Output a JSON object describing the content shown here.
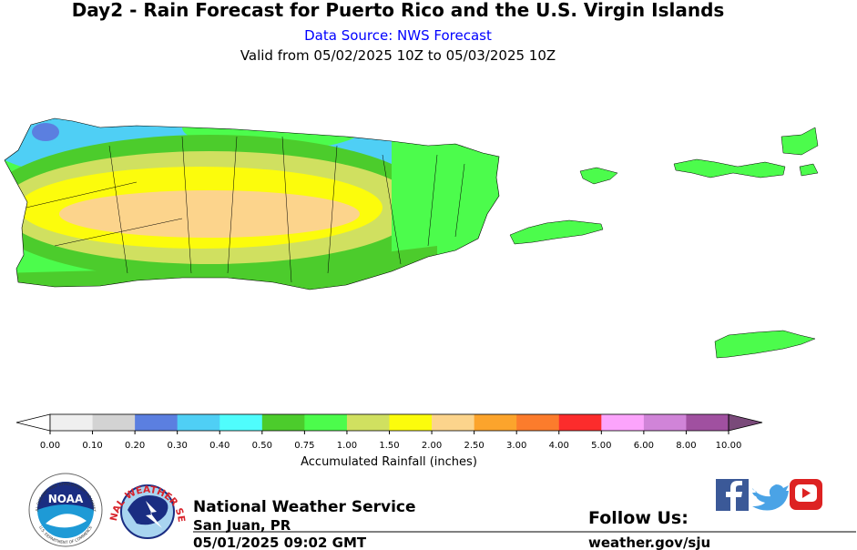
{
  "header": {
    "title": "Day2 - Rain Forecast for Puerto Rico and the U.S. Virgin Islands",
    "source": "Data Source: NWS Forecast",
    "valid": "Valid from 05/02/2025 10Z to 05/03/2025 10Z"
  },
  "legend": {
    "label": "Accumulated Rainfall (inches)",
    "ticks": [
      "0.00",
      "0.10",
      "0.20",
      "0.30",
      "0.40",
      "0.50",
      "0.75",
      "1.00",
      "1.50",
      "2.00",
      "2.50",
      "3.00",
      "4.00",
      "5.00",
      "6.00",
      "8.00",
      "10.00"
    ],
    "colors": [
      "#efefef",
      "#d3d3d3",
      "#5b7fe0",
      "#4fcff5",
      "#4ffdfd",
      "#4ccc2c",
      "#4cfc4c",
      "#d0e060",
      "#fcfc0c",
      "#fcd48c",
      "#fca42c",
      "#fc7c2c",
      "#fc2c2c",
      "#fca4fc",
      "#d084d8",
      "#a050a0"
    ],
    "under_color": "#ffffff",
    "over_color": "#7a4a7a"
  },
  "footer": {
    "noaa_logo": "NOAA",
    "noaa_ring": "NATIONAL OCEANIC AND ATMOSPHERIC ADMINISTRATION",
    "noaa_ring_bottom": "U.S. DEPARTMENT OF COMMERCE",
    "nws_ring": "NATIONAL WEATHER SERVICE",
    "office": "National Weather Service",
    "location": "San Juan, PR",
    "issued": "05/01/2025 09:02 GMT",
    "follow": "Follow Us:",
    "website": "weather.gov/sju"
  }
}
